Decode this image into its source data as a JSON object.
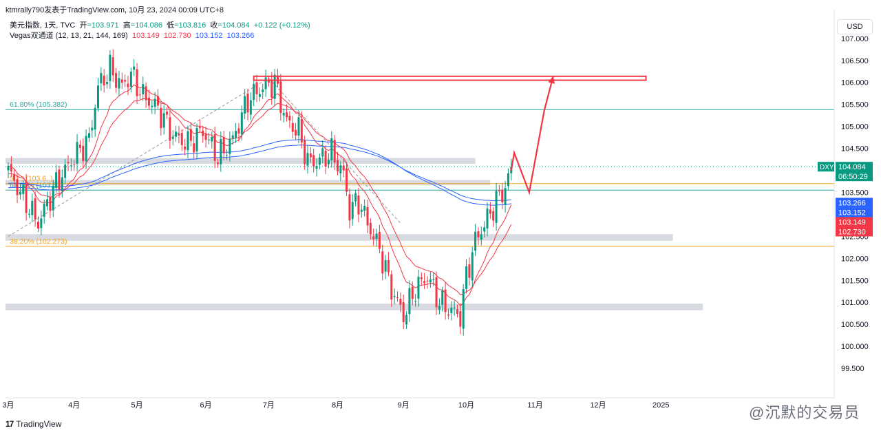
{
  "header": {
    "published": "ktmrally790发表于TradingView.com, 10月 23, 2024 00:09 UTC+8"
  },
  "legend": {
    "symbol_line": "美元指数, 1天, TVC",
    "open_label": "开",
    "open_value": "=103.971",
    "high_label": "高",
    "high_value": "=104.086",
    "low_label": "低",
    "low_value": "=103.816",
    "close_label": "收",
    "close_value": "=104.084",
    "change": "+0.122 (+0.12%)",
    "indicator_name": "Vegas双通道 (12, 13, 21, 144, 169)",
    "ind_v1": "103.149",
    "ind_v2": "102.730",
    "ind_v3": "103.152",
    "ind_v4": "103.266"
  },
  "currency_button": "USD",
  "brand": "TradingView",
  "watermark": "@沉默的交易员",
  "colors": {
    "up": "#089981",
    "down": "#f23645",
    "ema_fast": "#f23645",
    "ema_slow": "#2962ff",
    "fib": "#26a69a",
    "fib_orange": "#f7a21b",
    "zone": "#d1d4dc",
    "annotation": "#f23645"
  },
  "chart_data": {
    "type": "candlestick",
    "symbol": "DXY",
    "timeframe": "1D",
    "ylim": [
      99.3,
      107.6
    ],
    "y_ticks": [
      99.5,
      100.0,
      100.5,
      101.0,
      101.5,
      102.0,
      102.5,
      103.0,
      103.5,
      104.0,
      104.5,
      105.0,
      105.5,
      106.0,
      106.5,
      107.0
    ],
    "y_tick_labels": [
      "99.500",
      "100.000",
      "100.500",
      "101.000",
      "101.500",
      "102.000",
      "102.500",
      "103.000",
      "103.500",
      "104.000",
      "104.500",
      "105.000",
      "105.500",
      "106.000",
      "106.500",
      "107.000"
    ],
    "x_labels": [
      "3月",
      "4月",
      "5月",
      "6月",
      "7月",
      "8月",
      "9月",
      "10月",
      "11月",
      "12月",
      "2025"
    ],
    "x_label_days": [
      0,
      22,
      43,
      66,
      87,
      110,
      132,
      153,
      176,
      197,
      218
    ],
    "price_path": [
      [
        0,
        104.0
      ],
      [
        4,
        103.5
      ],
      [
        10,
        102.8
      ],
      [
        16,
        103.7
      ],
      [
        22,
        104.3
      ],
      [
        27,
        104.7
      ],
      [
        30,
        105.9
      ],
      [
        34,
        106.3
      ],
      [
        38,
        105.9
      ],
      [
        41,
        106.2
      ],
      [
        45,
        105.7
      ],
      [
        50,
        105.4
      ],
      [
        55,
        104.8
      ],
      [
        60,
        104.6
      ],
      [
        65,
        104.9
      ],
      [
        70,
        104.3
      ],
      [
        75,
        104.7
      ],
      [
        80,
        105.6
      ],
      [
        85,
        105.9
      ],
      [
        89,
        106.0
      ],
      [
        93,
        105.1
      ],
      [
        97,
        104.9
      ],
      [
        100,
        104.2
      ],
      [
        103,
        104.2
      ],
      [
        108,
        104.4
      ],
      [
        112,
        103.9
      ],
      [
        114,
        103.1
      ],
      [
        117,
        103.3
      ],
      [
        120,
        102.8
      ],
      [
        124,
        102.2
      ],
      [
        128,
        101.3
      ],
      [
        132,
        100.7
      ],
      [
        136,
        101.3
      ],
      [
        140,
        101.6
      ],
      [
        144,
        101.0
      ],
      [
        148,
        100.8
      ],
      [
        151,
        100.7
      ],
      [
        153,
        101.6
      ],
      [
        156,
        102.4
      ],
      [
        160,
        102.9
      ],
      [
        163,
        103.3
      ],
      [
        166,
        103.6
      ],
      [
        168,
        104.084
      ]
    ],
    "vegas_channel": {
      "ema12": 103.149,
      "ema13": 103.149,
      "ema21": 102.73,
      "ema144": 103.152,
      "ema169": 103.266
    },
    "last_price": "104.084",
    "countdown": "06:50:29",
    "price_tag_label": "DXY",
    "fib_levels": [
      {
        "label": "61.80% (105.382)",
        "price": 105.382,
        "color": "#26a69a"
      },
      {
        "label": "61.80% (103.5..)",
        "price": 103.55,
        "color": "#26a69a"
      },
      {
        "label": "38.20% (102.273)",
        "price": 102.273,
        "color": "#f7a21b"
      },
      {
        "label": "5.2.. (103.6..)",
        "price": 103.7,
        "color": "#f7a21b"
      }
    ],
    "zones": [
      {
        "from_day": 0,
        "to_day": 156,
        "low": 104.15,
        "high": 104.28
      },
      {
        "from_day": 0,
        "to_day": 161,
        "low": 103.66,
        "high": 103.78
      },
      {
        "from_day": 0,
        "to_day": 222,
        "low": 102.4,
        "high": 102.55
      },
      {
        "from_day": 0,
        "to_day": 232,
        "low": 100.82,
        "high": 100.97
      }
    ],
    "target_box": {
      "from_day": 82,
      "to_day": 213,
      "low": 106.05,
      "high": 106.14
    },
    "projection_path": [
      [
        168,
        104.0
      ],
      [
        169,
        104.4
      ],
      [
        174,
        103.5
      ],
      [
        179,
        105.35
      ],
      [
        182,
        106.14
      ]
    ],
    "axis_value_tags": [
      {
        "value": "103.266",
        "price": 103.266,
        "color": "#2962ff"
      },
      {
        "value": "103.152",
        "price": 103.152,
        "color": "#2962ff"
      },
      {
        "value": "103.149",
        "price": 103.149,
        "color": "#f23645"
      },
      {
        "value": "102.730",
        "price": 102.73,
        "color": "#f23645"
      }
    ]
  }
}
